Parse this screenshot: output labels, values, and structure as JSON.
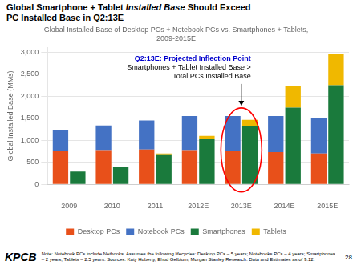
{
  "chart_data": {
    "type": "bar",
    "header": [
      [
        {
          "text": "Global Smartphone + Tablet "
        },
        {
          "text": "Installed Base",
          "style": "italic"
        },
        {
          "text": " Should Exceed"
        }
      ],
      [
        {
          "text": "PC Installed Base in Q2:13E"
        }
      ]
    ],
    "title": [
      "Global Installed Base of Desktop PCs + Notebook PCs vs. Smartphones + Tablets,",
      "2009-2015E"
    ],
    "ylabel": "Global Installed Base (MMs)",
    "categories": [
      "2009",
      "2010",
      "2011",
      "2012E",
      "2013E",
      "2014E",
      "2015E"
    ],
    "series": [
      {
        "name": "Desktop PCs",
        "color": "#E8501A",
        "values": [
          750,
          775,
          790,
          775,
          750,
          730,
          700
        ]
      },
      {
        "name": "Notebook PCs",
        "color": "#4472C4",
        "values": [
          470,
          560,
          660,
          775,
          800,
          820,
          800
        ]
      },
      {
        "name": "Smartphones",
        "color": "#1A7A3C",
        "values": [
          290,
          390,
          680,
          1030,
          1310,
          1740,
          2250
        ]
      },
      {
        "name": "Tablets",
        "color": "#F0B800",
        "values": [
          0,
          15,
          20,
          70,
          150,
          490,
          700
        ]
      }
    ],
    "stacked": [
      [
        "Desktop PCs",
        "Notebook PCs"
      ],
      [
        "Smartphones",
        "Tablets"
      ]
    ],
    "ylim": [
      0,
      3100
    ],
    "yticks": [
      0,
      500,
      {
        "value": 1000,
        "label": "1,000"
      },
      {
        "value": 1500,
        "label": "1,500"
      },
      {
        "value": 2000,
        "label": "2,000"
      },
      {
        "value": 2500,
        "label": "2,500"
      },
      {
        "value": 3000,
        "label": "3,000"
      }
    ],
    "grid": true,
    "legend": "bottom",
    "annotations": [
      {
        "category": "2013E",
        "marker": "circle",
        "color": "red"
      },
      {
        "category": "2013E",
        "text": "Q2:13E: Projected Inflection Point",
        "color": "#0000CC",
        "style": "bold"
      },
      {
        "category": "2013E",
        "text": "Smartphones + Tablet Installed Base >\nTotal PCs Installed Base"
      }
    ],
    "footer": "Note: Notebook PCs include Netbooks. Assumes the following lifecycles: Desktop PCs – 5 years; Notebooks PCs – 4 years; Smartphones\n– 2 years; Tablets – 2.5 years. Sources: Katy Huberty, Ehud Gelblum, Morgan Stanley Research. Data and Estimates as of 9.12.",
    "page": "28",
    "logo": "KPCB"
  }
}
